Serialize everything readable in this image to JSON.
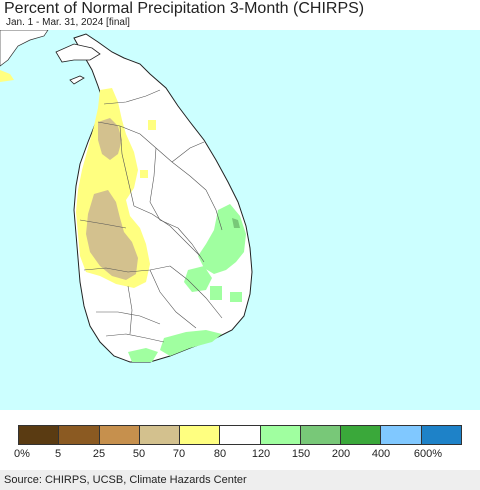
{
  "header": {
    "title": "Percent of Normal Precipitation 3-Month (CHIRPS)",
    "subtitle": "Jan. 1 - Mar. 31, 2024 [final]"
  },
  "map": {
    "ocean_color": "#ccffff",
    "land_color": "#ffffff",
    "boundary_color": "#555555"
  },
  "legend": {
    "colors": [
      "#5a3b12",
      "#8b5a22",
      "#c6904d",
      "#d3c18e",
      "#ffff80",
      "#ffffff",
      "#a0ffa0",
      "#78c878",
      "#3aa83a",
      "#80c8ff",
      "#1e82c8"
    ],
    "labels": [
      "0%",
      "5",
      "25",
      "50",
      "70",
      "80",
      "120",
      "150",
      "200",
      "400",
      "600%"
    ]
  },
  "footer": {
    "source": "Source: CHIRPS, UCSB, Climate Hazards Center"
  }
}
